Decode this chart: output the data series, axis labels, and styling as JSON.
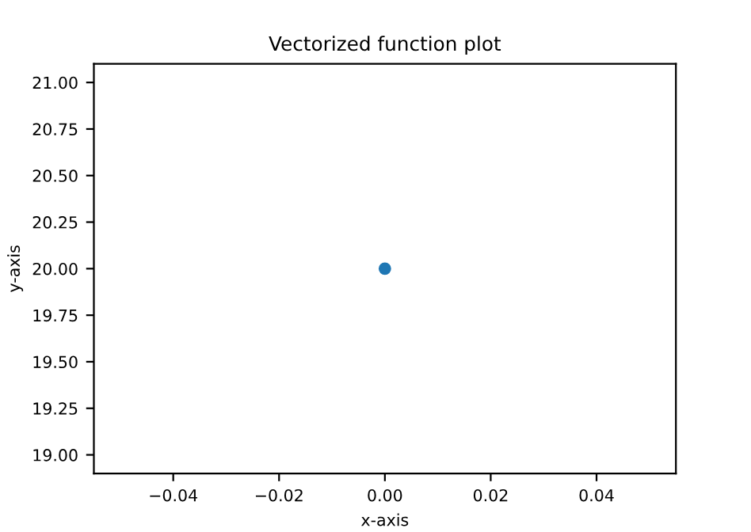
{
  "chart_data": {
    "type": "scatter",
    "title": "Vectorized function plot",
    "xlabel": "x-axis",
    "ylabel": "y-axis",
    "x": [
      0.0
    ],
    "series": [
      {
        "color": "#1f77b4",
        "values": [
          20.0
        ]
      }
    ],
    "xlim": [
      -0.055,
      0.055
    ],
    "ylim": [
      18.9,
      21.1
    ],
    "xticks": [
      {
        "value": -0.04,
        "label": "−0.04"
      },
      {
        "value": -0.02,
        "label": "−0.02"
      },
      {
        "value": 0,
        "label": "0.00"
      },
      {
        "value": 0.02,
        "label": "0.02"
      },
      {
        "value": 0.04,
        "label": "0.04"
      }
    ],
    "yticks": [
      {
        "value": 19,
        "label": "19.00"
      },
      {
        "value": 19.25,
        "label": "19.25"
      },
      {
        "value": 19.5,
        "label": "19.50"
      },
      {
        "value": 19.75,
        "label": "19.75"
      },
      {
        "value": 20,
        "label": "20.00"
      },
      {
        "value": 20.25,
        "label": "20.25"
      },
      {
        "value": 20.5,
        "label": "20.50"
      },
      {
        "value": 20.75,
        "label": "20.75"
      },
      {
        "value": 21,
        "label": "21.00"
      }
    ],
    "grid": false,
    "legend": false,
    "marker": "circle"
  }
}
